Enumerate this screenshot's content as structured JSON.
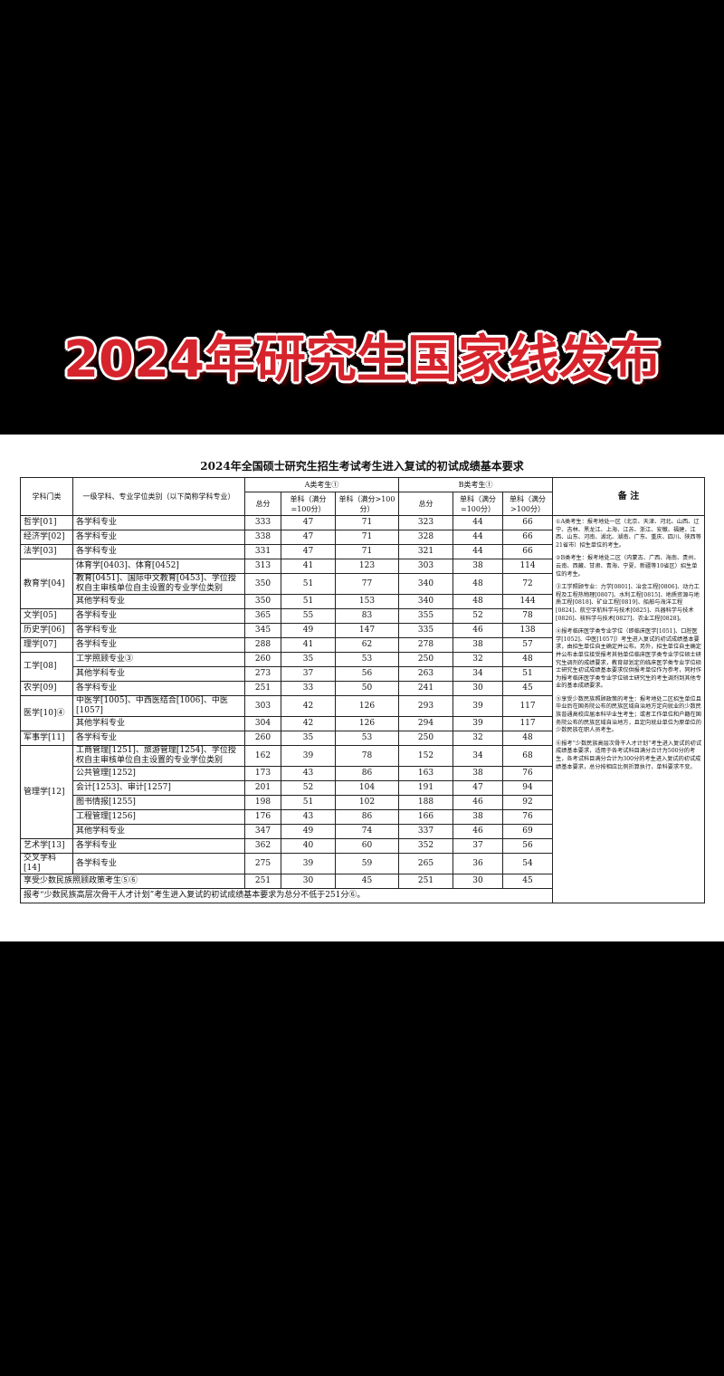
{
  "banner": {
    "title": "2024年研究生国家线发布"
  },
  "table": {
    "title": "2024年全国硕士研究生招生考试考生进入复试的初试成绩基本要求",
    "headers": {
      "category": "学科门类",
      "subject": "一级学科、专业学位类别（以下简称学科专业）",
      "a_group": "A类考生①",
      "b_group": "B类考生①",
      "total": "总分",
      "single_100": "单科（满分=100分）",
      "single_over": "单科（满分>100分）",
      "notes": "备 注"
    },
    "groups": [
      {
        "category": "哲学[01]",
        "items": [
          {
            "subject": "各学科专业",
            "a": [
              333,
              47,
              71
            ],
            "b": [
              323,
              44,
              66
            ]
          }
        ]
      },
      {
        "category": "经济学[02]",
        "items": [
          {
            "subject": "各学科专业",
            "a": [
              338,
              47,
              71
            ],
            "b": [
              328,
              44,
              66
            ]
          }
        ]
      },
      {
        "category": "法学[03]",
        "items": [
          {
            "subject": "各学科专业",
            "a": [
              331,
              47,
              71
            ],
            "b": [
              321,
              44,
              66
            ]
          }
        ]
      },
      {
        "category": "教育学[04]",
        "items": [
          {
            "subject": "体育学[0403]、体育[0452]",
            "a": [
              313,
              41,
              123
            ],
            "b": [
              303,
              38,
              114
            ]
          },
          {
            "subject": "教育[0451]、国际中文教育[0453]、学位授权自主审核单位自主设置的专业学位类别",
            "a": [
              350,
              51,
              77
            ],
            "b": [
              340,
              48,
              72
            ]
          },
          {
            "subject": "其他学科专业",
            "a": [
              350,
              51,
              153
            ],
            "b": [
              340,
              48,
              144
            ]
          }
        ]
      },
      {
        "category": "文学[05]",
        "items": [
          {
            "subject": "各学科专业",
            "a": [
              365,
              55,
              83
            ],
            "b": [
              355,
              52,
              78
            ]
          }
        ]
      },
      {
        "category": "历史学[06]",
        "items": [
          {
            "subject": "各学科专业",
            "a": [
              345,
              49,
              147
            ],
            "b": [
              335,
              46,
              138
            ]
          }
        ]
      },
      {
        "category": "理学[07]",
        "items": [
          {
            "subject": "各学科专业",
            "a": [
              288,
              41,
              62
            ],
            "b": [
              278,
              38,
              57
            ]
          }
        ]
      },
      {
        "category": "工学[08]",
        "items": [
          {
            "subject": "工学照顾专业③",
            "a": [
              260,
              35,
              53
            ],
            "b": [
              250,
              32,
              48
            ]
          },
          {
            "subject": "其他学科专业",
            "a": [
              273,
              37,
              56
            ],
            "b": [
              263,
              34,
              51
            ]
          }
        ]
      },
      {
        "category": "农学[09]",
        "items": [
          {
            "subject": "各学科专业",
            "a": [
              251,
              33,
              50
            ],
            "b": [
              241,
              30,
              45
            ]
          }
        ]
      },
      {
        "category": "医学[10]④",
        "items": [
          {
            "subject": "中医学[1005]、中西医结合[1006]、中医[1057]",
            "a": [
              303,
              42,
              126
            ],
            "b": [
              293,
              39,
              117
            ]
          },
          {
            "subject": "其他学科专业",
            "a": [
              304,
              42,
              126
            ],
            "b": [
              294,
              39,
              117
            ]
          }
        ]
      },
      {
        "category": "军事学[11]",
        "items": [
          {
            "subject": "各学科专业",
            "a": [
              260,
              35,
              53
            ],
            "b": [
              250,
              32,
              48
            ]
          }
        ]
      },
      {
        "category": "管理学[12]",
        "items": [
          {
            "subject": "工商管理[1251]、旅游管理[1254]、学位授权自主审核单位自主设置的专业学位类别",
            "a": [
              162,
              39,
              78
            ],
            "b": [
              152,
              34,
              68
            ]
          },
          {
            "subject": "公共管理[1252]",
            "a": [
              173,
              43,
              86
            ],
            "b": [
              163,
              38,
              76
            ]
          },
          {
            "subject": "会计[1253]、审计[1257]",
            "a": [
              201,
              52,
              104
            ],
            "b": [
              191,
              47,
              94
            ]
          },
          {
            "subject": "图书情报[1255]",
            "a": [
              198,
              51,
              102
            ],
            "b": [
              188,
              46,
              92
            ]
          },
          {
            "subject": "工程管理[1256]",
            "a": [
              176,
              43,
              86
            ],
            "b": [
              166,
              38,
              76
            ]
          },
          {
            "subject": "其他学科专业",
            "a": [
              347,
              49,
              74
            ],
            "b": [
              337,
              46,
              69
            ]
          }
        ]
      },
      {
        "category": "艺术学[13]",
        "items": [
          {
            "subject": "各学科专业",
            "a": [
              362,
              40,
              60
            ],
            "b": [
              352,
              37,
              56
            ]
          }
        ]
      },
      {
        "category": "交叉学科[14]",
        "items": [
          {
            "subject": "各学科专业",
            "a": [
              275,
              39,
              59
            ],
            "b": [
              265,
              36,
              54
            ]
          }
        ]
      },
      {
        "category": "享受少数民族照顾政策考生⑤⑥",
        "items": [
          {
            "a": [
              251,
              30,
              45
            ],
            "b": [
              251,
              30,
              45
            ]
          }
        ]
      }
    ],
    "footer": "报考“少数民族高层次骨干人才计划”考生进入复试的初试成绩基本要求为总分不低于251分⑥。",
    "notes": [
      "①A类考生：报考地处一区（北京、天津、河北、山西、辽宁、吉林、黑龙江、上海、江苏、浙江、安徽、福建、江西、山东、河南、湖北、湖南、广东、重庆、四川、陕西等21省市）招生单位的考生。",
      "②B类考生：报考地处二区（内蒙古、广西、海南、贵州、云南、西藏、甘肃、青海、宁夏、新疆等10省区）招生单位的考生。",
      "③工学照顾专业：力学[0801]、冶金工程[0806]、动力工程及工程热物理[0807]、水利工程[0815]、地质资源与地质工程[0818]、矿业工程[0819]、船舶与海洋工程[0824]、航空宇航科学与技术[0825]、兵器科学与技术[0826]、核科学与技术[0827]、农业工程[0828]。",
      "④报考临床医学类专业学位（即临床医学[1051]、口腔医学[1052]、中医[1057]）考生进入复试的初试成绩基本要求，由招生单位自主确定并公布。另外，招生单位自主确定并公布本单位接受报考其他单位临床医学类专业学位硕士研究生调剂的成绩要求，教育部划定的临床医学类专业学位硕士研究生初试成绩基本要求仅供报考单位作为参考，同时作为报考临床医学类专业学位硕士研究生的考生调剂到其他专业的基本成绩要求。",
      "⑤享受少数民族照顾政策的考生：报考地处二区招生单位且毕业后在国务院公布的民族区域自治地方定向就业的少数民族普通高校应届本科毕业生考生；或者工作单位和户籍在国务院公布的民族区域自治地方，且定向就业单位为原单位的少数民族在职人员考生。",
      "⑥报考“少数民族高层次骨干人才计划”考生进入复试的初试成绩基本要求，适用于各考试科目满分合计为500分的考生，各考试科目满分合计为300分的考生进入复试的初试成绩基本要求，总分按相应比例折算执行，单科要求不变。"
    ]
  }
}
